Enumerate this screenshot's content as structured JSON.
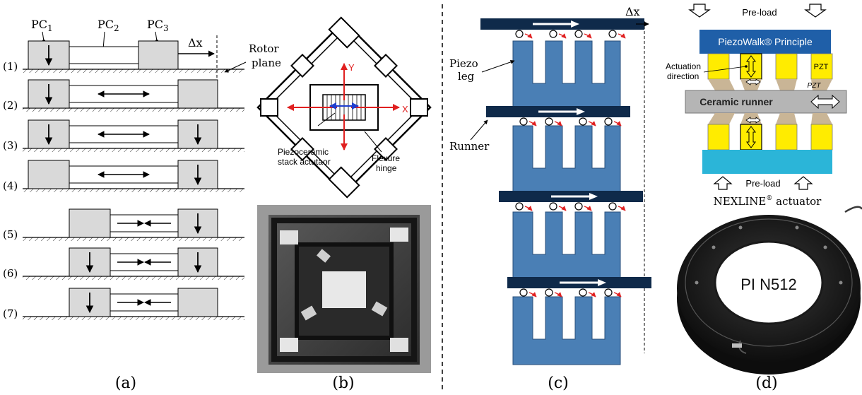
{
  "panel_a": {
    "pc1": "PC",
    "pc1_sub": "1",
    "pc2": "PC",
    "pc2_sub": "2",
    "pc3": "PC",
    "pc3_sub": "3",
    "delta_x": "Δx",
    "rotor_plane": "Rotor",
    "rotor_plane_2": "plane",
    "steps": [
      "(1)",
      "(2)",
      "(3)",
      "(4)",
      "(5)",
      "(6)",
      "(7)"
    ],
    "caption": "(a)"
  },
  "panel_b": {
    "axis_y": "Y",
    "axis_x": "X",
    "stack_label_1": "Piezoceramic",
    "stack_label_2": "stack actutaor",
    "hinge_label_1": "Flexure",
    "hinge_label_2": "hinge",
    "caption": "(b)"
  },
  "panel_c": {
    "delta_x": "Δx",
    "piezo_leg_1": "Piezo",
    "piezo_leg_2": "leg",
    "runner": "Runner",
    "caption": "(c)"
  },
  "panel_d": {
    "preload_top": "Pre-load",
    "principle": "PiezoWalk® Principle",
    "actuation_1": "Actuation",
    "actuation_2": "direction",
    "pzt_1": "PZT",
    "pzt_2": "PZT",
    "ceramic_runner": "Ceramic runner",
    "preload_bottom": "Pre-load",
    "actuator_name": "NEXLINE",
    "actuator_sup": "®",
    "actuator_suffix": " actuator",
    "product": "PI N512",
    "caption": "(d)"
  },
  "colors": {
    "clamp_fill": "#d9d9d9",
    "leg_blue": "#4a7fb5",
    "runner_navy": "#0f2a4a",
    "principle_blue": "#1f5fa8",
    "pzt_yellow": "#ffec00",
    "ceramic_gray": "#b5b5b5",
    "base_cyan": "#2bb5d8",
    "axis_red": "#e02020",
    "axis_blue": "#1f3fd0"
  }
}
